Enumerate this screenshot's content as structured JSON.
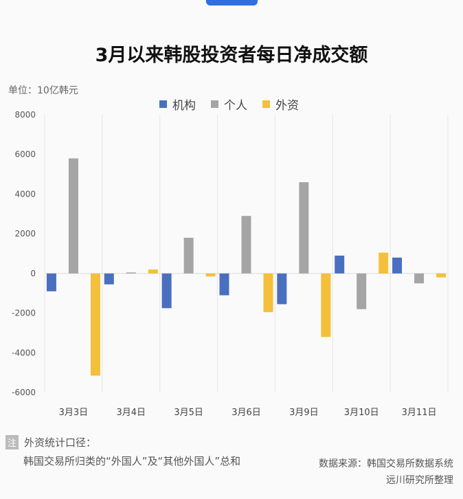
{
  "title": "3月以来韩股投资者每日净成交额",
  "unit_label": "单位：10亿韩元",
  "colors": {
    "机构": "#4a6fc0",
    "个人": "#a5a5a5",
    "外资": "#f4bf3a",
    "accent_tab": "#2f6fe0"
  },
  "chart_data": {
    "type": "bar",
    "title": "3月以来韩股投资者每日净成交额",
    "ylabel": "单位：10亿韩元",
    "ylim": [
      -6000,
      8000
    ],
    "yticks": [
      8000,
      6000,
      4000,
      2000,
      0,
      -2000,
      -4000,
      -6000
    ],
    "legend_position": "top",
    "categories": [
      "3月3日",
      "3月4日",
      "3月5日",
      "3月6日",
      "3月9日",
      "3月10日",
      "3月11日"
    ],
    "series": [
      {
        "name": "机构",
        "values": [
          -900,
          -550,
          -1750,
          -1100,
          -1550,
          900,
          800
        ]
      },
      {
        "name": "个人",
        "values": [
          5800,
          50,
          1800,
          2900,
          4600,
          -1800,
          -500
        ]
      },
      {
        "name": "外资",
        "values": [
          -5150,
          200,
          -150,
          -1950,
          -3200,
          1050,
          -200
        ]
      }
    ]
  },
  "note": {
    "badge": "注",
    "line1": "外资统计口径：",
    "line2": "韩国交易所归类的“外国人”及“其他外国人”总和"
  },
  "source": {
    "line1": "数据来源：韩国交易所数据系统",
    "line2": "远川研究所整理"
  }
}
